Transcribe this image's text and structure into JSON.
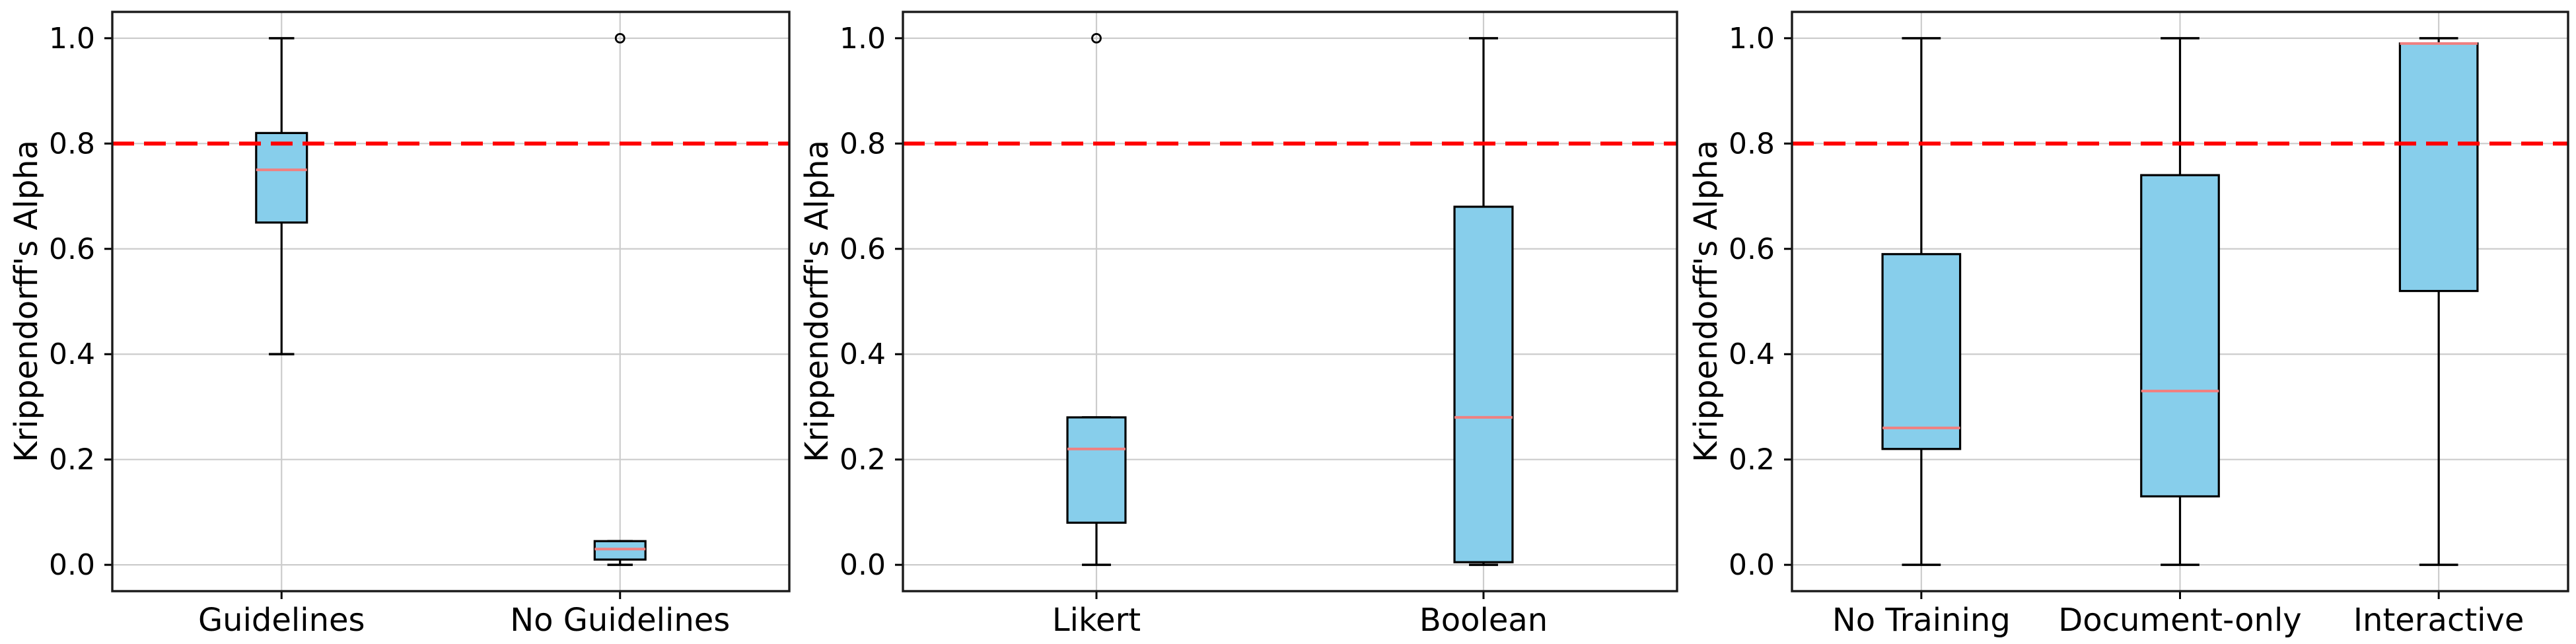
{
  "figure": {
    "background": "#ffffff",
    "n_panels": 3
  },
  "style": {
    "box_fill": "#87ceeb",
    "box_edge": "#000000",
    "median_color": "#f08080",
    "whisker_color": "#000000",
    "cap_color": "#000000",
    "outlier_color": "#000000",
    "grid_color": "#cccccc",
    "spine_color": "#1a1a1a",
    "threshold_color": "#ff0000",
    "tick_label_color": "#000000"
  },
  "chart_data": [
    {
      "type": "boxplot",
      "title": "",
      "xlabel": "",
      "ylabel": "Krippendorff's Alpha",
      "ylim": [
        -0.05,
        1.05
      ],
      "yticks": [
        0.0,
        0.2,
        0.4,
        0.6,
        0.8,
        1.0
      ],
      "grid": true,
      "legend": "none",
      "threshold_line": {
        "y": 0.8,
        "style": "dashed",
        "color": "#ff0000"
      },
      "categories": [
        "Guidelines",
        "No Guidelines"
      ],
      "boxes": [
        {
          "label": "Guidelines",
          "whisker_low": 0.4,
          "q1": 0.65,
          "median": 0.75,
          "q3": 0.82,
          "whisker_high": 1.0,
          "outliers": []
        },
        {
          "label": "No Guidelines",
          "whisker_low": 0.0,
          "q1": 0.01,
          "median": 0.03,
          "q3": 0.045,
          "whisker_high": 0.045,
          "outliers": [
            1.0
          ]
        }
      ]
    },
    {
      "type": "boxplot",
      "title": "",
      "xlabel": "",
      "ylabel": "Krippendorff's Alpha",
      "ylim": [
        -0.05,
        1.05
      ],
      "yticks": [
        0.0,
        0.2,
        0.4,
        0.6,
        0.8,
        1.0
      ],
      "grid": true,
      "legend": "none",
      "threshold_line": {
        "y": 0.8,
        "style": "dashed",
        "color": "#ff0000"
      },
      "categories": [
        "Likert",
        "Boolean"
      ],
      "boxes": [
        {
          "label": "Likert",
          "whisker_low": 0.0,
          "q1": 0.08,
          "median": 0.22,
          "q3": 0.28,
          "whisker_high": 0.28,
          "outliers": [
            1.0
          ]
        },
        {
          "label": "Boolean",
          "whisker_low": 0.0,
          "q1": 0.005,
          "median": 0.28,
          "q3": 0.68,
          "whisker_high": 1.0,
          "outliers": []
        }
      ]
    },
    {
      "type": "boxplot",
      "title": "",
      "xlabel": "",
      "ylabel": "Krippendorff's Alpha",
      "ylim": [
        -0.05,
        1.05
      ],
      "yticks": [
        0.0,
        0.2,
        0.4,
        0.6,
        0.8,
        1.0
      ],
      "grid": true,
      "legend": "none",
      "threshold_line": {
        "y": 0.8,
        "style": "dashed",
        "color": "#ff0000"
      },
      "categories": [
        "No Training",
        "Document-only",
        "Interactive"
      ],
      "boxes": [
        {
          "label": "No Training",
          "whisker_low": 0.0,
          "q1": 0.22,
          "median": 0.26,
          "q3": 0.59,
          "whisker_high": 1.0,
          "outliers": []
        },
        {
          "label": "Document-only",
          "whisker_low": 0.0,
          "q1": 0.13,
          "median": 0.33,
          "q3": 0.74,
          "whisker_high": 1.0,
          "outliers": []
        },
        {
          "label": "Interactive",
          "whisker_low": 0.0,
          "q1": 0.52,
          "median": 0.99,
          "q3": 0.99,
          "whisker_high": 1.0,
          "outliers": []
        }
      ]
    }
  ]
}
